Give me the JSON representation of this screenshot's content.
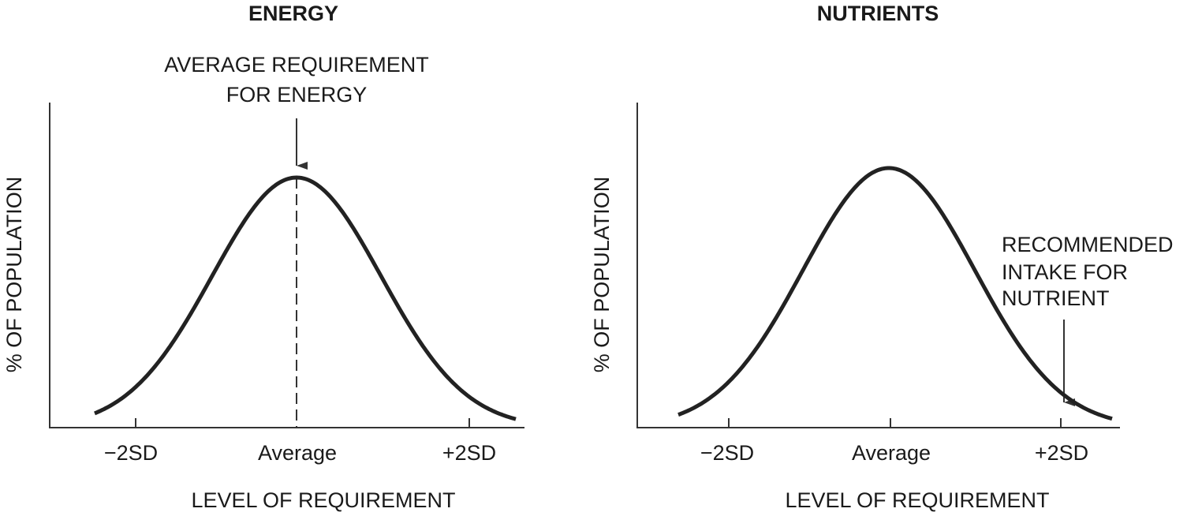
{
  "panels": [
    {
      "title": "ENERGY",
      "annotation": [
        "AVERAGE REQUIREMENT",
        "FOR ENERGY"
      ],
      "y_label": "% OF POPULATION",
      "x_label": "LEVEL OF REQUIREMENT",
      "tick_labels": [
        "−2SD",
        "Average",
        "+2SD"
      ]
    },
    {
      "title": "NUTRIENTS",
      "annotation": [
        "RECOMMENDED",
        "INTAKE FOR",
        "NUTRIENT"
      ],
      "y_label": "% OF POPULATION",
      "x_label": "LEVEL OF REQUIREMENT",
      "tick_labels": [
        "−2SD",
        "Average",
        "+2SD"
      ]
    }
  ]
}
